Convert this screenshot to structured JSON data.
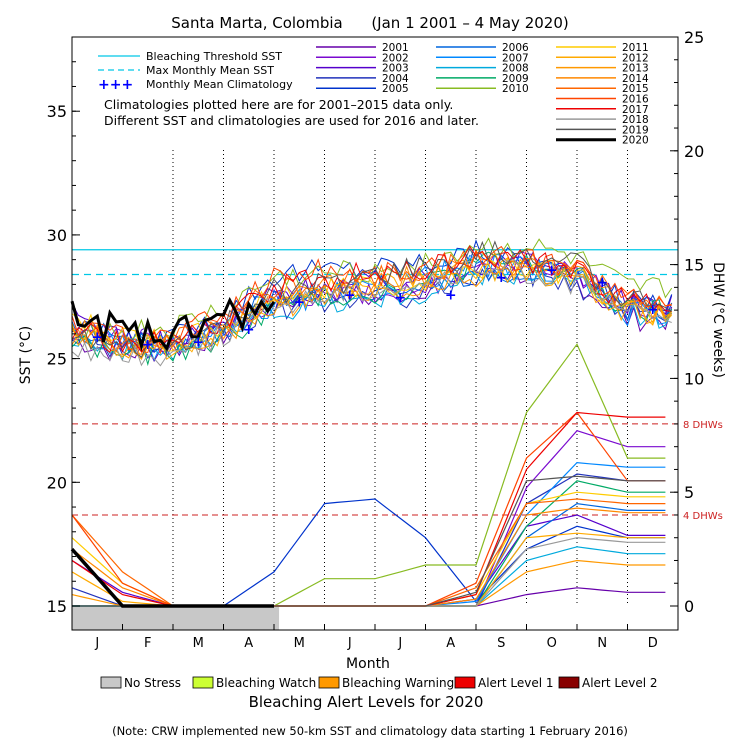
{
  "chart_data": {
    "type": "line",
    "title": "Santa Marta, Colombia      (Jan 1 2001 – 4 May 2020)",
    "xlabel": "Month",
    "ylabel_left": "SST (°C)",
    "ylabel_right": "DHW (°C weeks)",
    "ylim_left": [
      15,
      38
    ],
    "ylim_right": [
      0,
      25
    ],
    "left_ticks": [
      "15",
      "20",
      "25",
      "30",
      "35"
    ],
    "right_ticks": [
      "0",
      "5",
      "10",
      "15",
      "20",
      "25"
    ],
    "months": [
      "J",
      "F",
      "M",
      "A",
      "M",
      "J",
      "J",
      "A",
      "S",
      "O",
      "N",
      "D"
    ],
    "reference_lines": {
      "bleaching_threshold_sst": 29.4,
      "max_monthly_mean_sst": 28.4,
      "dhw_8": 8,
      "dhw_4": 4,
      "dhw_8_label": "8 DHWs",
      "dhw_4_label": "4 DHWs"
    },
    "legend_refs": [
      {
        "label": "Bleaching Threshold SST",
        "color": "#00c8e6",
        "style": "solid"
      },
      {
        "label": "Max Monthly Mean SST",
        "color": "#00c8e6",
        "style": "dashed"
      },
      {
        "label": "Monthly Mean Climatology",
        "color": "#0000ff",
        "style": "plus"
      }
    ],
    "notes": [
      "Climatologies plotted here are for 2001–2015 data only.",
      "Different SST and climatologies are used for 2016 and later."
    ],
    "monthly_mean_climatology": [
      25.9,
      25.6,
      25.7,
      26.2,
      27.3,
      27.6,
      27.5,
      27.6,
      28.3,
      28.6,
      28.1,
      27.0
    ],
    "series": [
      {
        "name": "2001",
        "color": "#6600aa",
        "sst": [
          25.8,
          25.2,
          25.4,
          26.0,
          27.1,
          27.8,
          27.4,
          27.9,
          28.6,
          28.4,
          28.1,
          26.6
        ],
        "dhw": [
          0,
          0,
          0,
          0,
          0,
          0,
          0,
          0,
          0,
          0.5,
          0.8,
          0.6
        ]
      },
      {
        "name": "2002",
        "color": "#7a0acf",
        "sst": [
          26.5,
          25.8,
          25.6,
          26.1,
          27.4,
          27.6,
          27.5,
          27.8,
          28.9,
          28.9,
          28.6,
          27.1
        ],
        "dhw": [
          0,
          0,
          0,
          0,
          0,
          0,
          0,
          0,
          0,
          5.2,
          7.7,
          7.0
        ]
      },
      {
        "name": "2003",
        "color": "#5500cc",
        "sst": [
          26.8,
          25.9,
          25.7,
          26.4,
          27.6,
          27.9,
          28.1,
          28.2,
          28.8,
          28.9,
          28.5,
          27.2
        ],
        "dhw": [
          2.0,
          0.6,
          0,
          0,
          0,
          0,
          0,
          0,
          0.3,
          3.5,
          4.0,
          3.1
        ]
      },
      {
        "name": "2004",
        "color": "#2233bb",
        "sst": [
          26.1,
          25.4,
          25.3,
          25.9,
          27.0,
          27.3,
          27.6,
          27.5,
          28.4,
          28.5,
          28.0,
          26.9
        ],
        "dhw": [
          0.8,
          0,
          0,
          0,
          0,
          0,
          0,
          0,
          0,
          4.5,
          5.8,
          5.5
        ]
      },
      {
        "name": "2005",
        "color": "#0033cc",
        "sst": [
          26.2,
          25.6,
          25.8,
          26.8,
          28.4,
          28.6,
          28.7,
          28.9,
          29.3,
          29.0,
          28.3,
          27.3
        ],
        "dhw": [
          0,
          0,
          0,
          0,
          1.5,
          4.5,
          4.7,
          3.0,
          0.2,
          2.5,
          3.5,
          3.0
        ]
      },
      {
        "name": "2006",
        "color": "#0066dd",
        "sst": [
          26.4,
          25.7,
          25.5,
          26.2,
          27.5,
          27.7,
          27.9,
          28.0,
          28.5,
          28.6,
          28.2,
          27.0
        ],
        "dhw": [
          0,
          0,
          0,
          0,
          0,
          0,
          0,
          0,
          0,
          3.0,
          4.5,
          4.2
        ]
      },
      {
        "name": "2007",
        "color": "#0088ff",
        "sst": [
          25.9,
          25.5,
          25.4,
          26.0,
          27.2,
          27.5,
          27.8,
          28.3,
          28.8,
          28.7,
          28.3,
          26.8
        ],
        "dhw": [
          0,
          0,
          0,
          0,
          0,
          0,
          0,
          0,
          0.2,
          4.0,
          6.3,
          6.1
        ]
      },
      {
        "name": "2008",
        "color": "#00aadd",
        "sst": [
          26.0,
          25.3,
          25.4,
          25.9,
          27.0,
          27.2,
          27.4,
          27.6,
          28.3,
          28.4,
          28.0,
          26.7
        ],
        "dhw": [
          0,
          0,
          0,
          0,
          0,
          0,
          0,
          0,
          0,
          2.0,
          2.6,
          2.3
        ]
      },
      {
        "name": "2009",
        "color": "#00aa66",
        "sst": [
          25.7,
          25.2,
          25.3,
          25.8,
          27.1,
          27.5,
          27.7,
          28.0,
          28.9,
          28.8,
          28.4,
          26.9
        ],
        "dhw": [
          0,
          0,
          0,
          0,
          0,
          0,
          0,
          0,
          0,
          3.5,
          5.5,
          5.0
        ]
      },
      {
        "name": "2010",
        "color": "#88bb22",
        "sst": [
          26.3,
          26.0,
          26.2,
          27.0,
          28.2,
          28.4,
          28.6,
          28.9,
          29.5,
          29.5,
          29.0,
          27.8
        ],
        "dhw": [
          0,
          0,
          0,
          0,
          0,
          1.2,
          1.2,
          1.8,
          1.8,
          8.5,
          11.5,
          6.5
        ]
      },
      {
        "name": "2011",
        "color": "#ffcc00",
        "sst": [
          26.6,
          25.9,
          25.6,
          26.3,
          27.6,
          27.8,
          28.0,
          28.1,
          28.7,
          28.8,
          28.3,
          26.9
        ],
        "dhw": [
          3.0,
          1.0,
          0,
          0,
          0,
          0,
          0,
          0,
          0.5,
          4.5,
          5.0,
          4.8
        ]
      },
      {
        "name": "2012",
        "color": "#ffaa00",
        "sst": [
          26.0,
          25.5,
          25.4,
          26.1,
          27.3,
          27.7,
          27.9,
          28.2,
          28.6,
          28.6,
          28.1,
          26.8
        ],
        "dhw": [
          1.5,
          0.2,
          0,
          0,
          0,
          0,
          0,
          0,
          0,
          3.0,
          3.2,
          3.0
        ]
      },
      {
        "name": "2013",
        "color": "#ff9900",
        "sst": [
          25.9,
          25.4,
          25.5,
          26.0,
          27.1,
          27.4,
          27.6,
          27.8,
          28.4,
          28.5,
          28.0,
          26.9
        ],
        "dhw": [
          0.5,
          0,
          0,
          0,
          0,
          0,
          0,
          0,
          0,
          1.5,
          2.0,
          1.8
        ]
      },
      {
        "name": "2014",
        "color": "#ff8800",
        "sst": [
          26.3,
          25.6,
          25.6,
          26.2,
          27.5,
          27.9,
          28.1,
          28.3,
          28.9,
          28.8,
          28.4,
          27.0
        ],
        "dhw": [
          2.5,
          0.8,
          0,
          0,
          0,
          0,
          0,
          0,
          0.3,
          4.0,
          4.3,
          4.1
        ]
      },
      {
        "name": "2015",
        "color": "#ff6600",
        "sst": [
          26.1,
          25.7,
          25.7,
          26.4,
          27.8,
          28.0,
          28.3,
          28.5,
          29.0,
          28.9,
          28.6,
          27.4
        ],
        "dhw": [
          4.0,
          1.5,
          0,
          0,
          0,
          0,
          0,
          0,
          0.8,
          4.5,
          4.7,
          4.5
        ]
      },
      {
        "name": "2016",
        "color": "#ff4400",
        "sst": [
          26.4,
          25.8,
          26.0,
          26.8,
          28.3,
          28.6,
          28.4,
          28.6,
          29.2,
          29.0,
          28.6,
          27.4
        ],
        "dhw": [
          4.0,
          1.0,
          0,
          0,
          0,
          0,
          0,
          0,
          1.0,
          6.5,
          8.5,
          5.5
        ]
      },
      {
        "name": "2017",
        "color": "#ee0000",
        "sst": [
          26.2,
          25.6,
          25.7,
          26.5,
          27.9,
          28.2,
          28.5,
          28.7,
          29.1,
          29.0,
          28.5,
          27.2
        ],
        "dhw": [
          2.0,
          0.5,
          0,
          0,
          0,
          0,
          0,
          0,
          0.5,
          6.0,
          8.5,
          8.3
        ]
      },
      {
        "name": "2018",
        "color": "#999999",
        "sst": [
          25.5,
          25.0,
          25.2,
          26.0,
          27.2,
          27.6,
          27.9,
          28.1,
          28.6,
          28.5,
          28.0,
          26.8
        ],
        "dhw": [
          0,
          0,
          0,
          0,
          0,
          0,
          0,
          0,
          0,
          2.5,
          3.0,
          2.8
        ]
      },
      {
        "name": "2019",
        "color": "#555555",
        "sst": [
          25.8,
          25.3,
          25.5,
          26.3,
          27.7,
          28.0,
          28.3,
          28.7,
          29.2,
          29.3,
          28.8,
          27.3
        ],
        "dhw": [
          0,
          0,
          0,
          0,
          0,
          0,
          0,
          0,
          0.6,
          5.5,
          5.7,
          5.5
        ]
      },
      {
        "name": "2020",
        "color": "#000000",
        "sst": [
          27.0,
          26.0,
          25.8,
          26.8,
          27.0
        ],
        "dhw": [
          2.5,
          0,
          0,
          0,
          0
        ],
        "highlight": true
      }
    ],
    "alert_bar": [
      {
        "level": "No Stress",
        "from_month": 0,
        "to_month": 4.1
      }
    ],
    "alert_legend": [
      {
        "label": "No Stress",
        "color": "#c8c8c8"
      },
      {
        "label": "Bleaching Watch",
        "color": "#ccff33"
      },
      {
        "label": "Bleaching Warning",
        "color": "#ff9900"
      },
      {
        "label": "Alert Level 1",
        "color": "#ee0000"
      },
      {
        "label": "Alert Level 2",
        "color": "#880000"
      }
    ],
    "alert_title": "Bleaching Alert Levels for 2020",
    "footnote": "(Note: CRW implemented new 50-km SST and climatology data starting 1 February 2016)"
  }
}
